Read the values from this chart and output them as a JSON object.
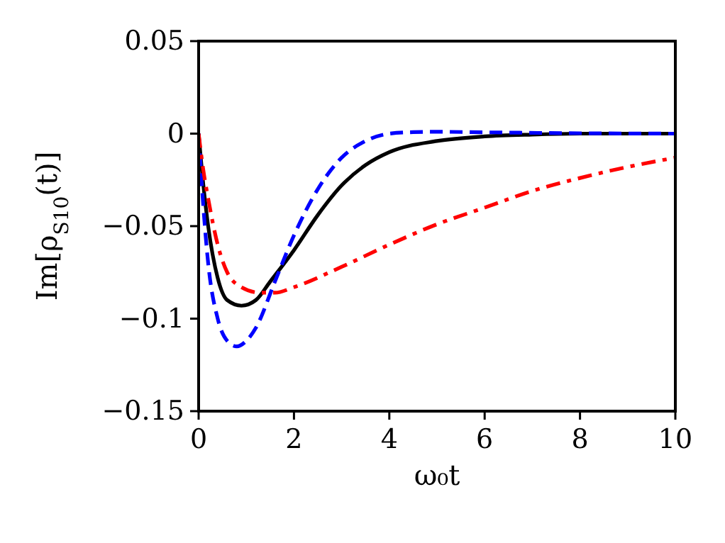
{
  "chart_data": {
    "type": "line",
    "xlabel": "ω₀t",
    "ylabel": "Im[ρ$_{S10}$(t)]",
    "xlim": [
      0,
      10
    ],
    "ylim": [
      -0.15,
      0.05
    ],
    "xticks": [
      0,
      2,
      4,
      6,
      8,
      10
    ],
    "yticks": [
      {
        "value": -0.15,
        "label": "−0.15"
      },
      {
        "value": -0.1,
        "label": "−0.1"
      },
      {
        "value": -0.05,
        "label": "−0.05"
      },
      0,
      0.05
    ],
    "grid": false,
    "series": [
      {
        "color": "#000000",
        "line_style": "solid",
        "x": [
          0,
          0.1,
          0.2,
          0.4,
          0.6,
          0.9,
          1.2,
          1.5,
          2,
          2.5,
          3,
          3.5,
          4,
          5,
          6,
          7,
          8,
          10
        ],
        "values": [
          0,
          -0.028,
          -0.05,
          -0.078,
          -0.09,
          -0.093,
          -0.09,
          -0.08,
          -0.063,
          -0.044,
          -0.028,
          -0.017,
          -0.01,
          -0.004,
          -0.0015,
          -0.0005,
          0,
          0
        ]
      },
      {
        "color": "#0000ff",
        "line_style": "dashed",
        "x": [
          0,
          0.1,
          0.2,
          0.4,
          0.6,
          0.8,
          1,
          1.2,
          1.6,
          2,
          2.5,
          3,
          3.5,
          4,
          4.5,
          5,
          6,
          8,
          10
        ],
        "values": [
          0,
          -0.04,
          -0.07,
          -0.1,
          -0.112,
          -0.115,
          -0.112,
          -0.105,
          -0.08,
          -0.055,
          -0.03,
          -0.013,
          -0.004,
          0,
          0.0008,
          0.001,
          0.0007,
          0.0002,
          0
        ]
      },
      {
        "color": "#ff0000",
        "line_style": "dashdot",
        "x": [
          0,
          0.1,
          0.2,
          0.4,
          0.6,
          0.9,
          1.3,
          1.6,
          2,
          3,
          4,
          5,
          6,
          7,
          8,
          9,
          10
        ],
        "values": [
          0,
          -0.02,
          -0.035,
          -0.06,
          -0.075,
          -0.083,
          -0.086,
          -0.086,
          -0.083,
          -0.072,
          -0.06,
          -0.049,
          -0.04,
          -0.031,
          -0.024,
          -0.018,
          -0.013
        ]
      }
    ]
  }
}
